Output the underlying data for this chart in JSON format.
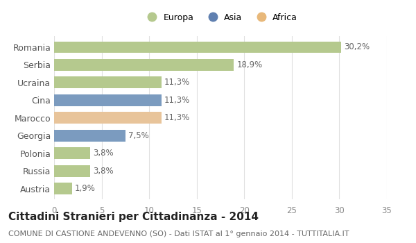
{
  "categories": [
    "Romania",
    "Serbia",
    "Ucraina",
    "Cina",
    "Marocco",
    "Georgia",
    "Polonia",
    "Russia",
    "Austria"
  ],
  "values": [
    30.2,
    18.9,
    11.3,
    11.3,
    11.3,
    7.5,
    3.8,
    3.8,
    1.9
  ],
  "labels": [
    "30,2%",
    "18,9%",
    "11,3%",
    "11,3%",
    "11,3%",
    "7,5%",
    "3,8%",
    "3,8%",
    "1,9%"
  ],
  "colors": [
    "#b5c98e",
    "#b5c98e",
    "#b5c98e",
    "#7b9bbf",
    "#e8c49a",
    "#7b9bbf",
    "#b5c98e",
    "#b5c98e",
    "#b5c98e"
  ],
  "legend_labels": [
    "Europa",
    "Asia",
    "Africa"
  ],
  "legend_colors": [
    "#b5c98e",
    "#6080b0",
    "#e8b87a"
  ],
  "xlim": [
    0,
    35
  ],
  "xticks": [
    0,
    5,
    10,
    15,
    20,
    25,
    30,
    35
  ],
  "title": "Cittadini Stranieri per Cittadinanza - 2014",
  "subtitle": "COMUNE DI CASTIONE ANDEVENNO (SO) - Dati ISTAT al 1° gennaio 2014 - TUTTITALIA.IT",
  "background_color": "#ffffff",
  "grid_color": "#e0e0e0",
  "bar_height": 0.65,
  "label_fontsize": 8.5,
  "title_fontsize": 11,
  "subtitle_fontsize": 8.0,
  "ytick_fontsize": 9,
  "xtick_fontsize": 8.5
}
